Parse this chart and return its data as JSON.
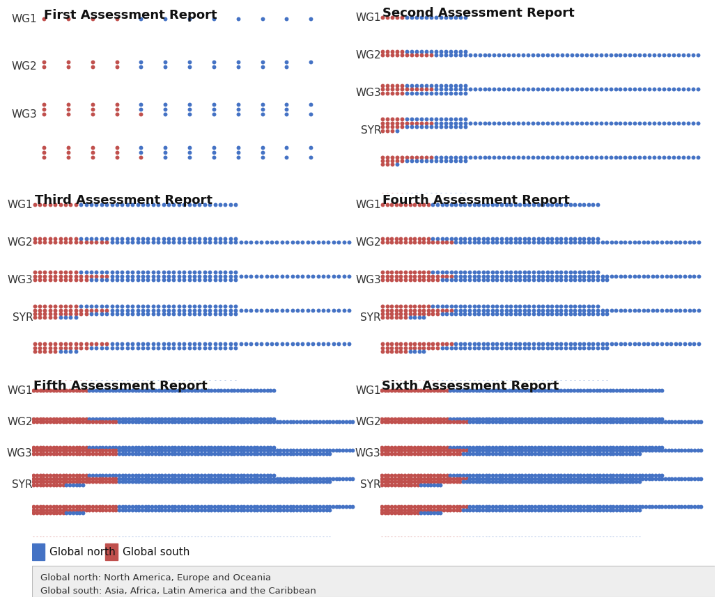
{
  "reports": [
    {
      "title": "First Assessment Report",
      "col": 0,
      "row": 0,
      "groups": [
        "WG1",
        "WG2",
        "WG3"
      ],
      "south": [
        16,
        16,
        18
      ],
      "north": [
        32,
        26,
        28
      ]
    },
    {
      "title": "Second Assessment Report",
      "col": 1,
      "row": 0,
      "groups": [
        "WG1",
        "WG2",
        "WG3",
        "SYR"
      ],
      "south": [
        20,
        44,
        20,
        10
      ],
      "north": [
        52,
        220,
        52,
        4
      ]
    },
    {
      "title": "Third Assessment Report",
      "col": 0,
      "row": 1,
      "groups": [
        "WG1",
        "WG2",
        "WG3",
        "SYR"
      ],
      "south": [
        36,
        60,
        44,
        18
      ],
      "north": [
        124,
        188,
        116,
        16
      ]
    },
    {
      "title": "Fourth Assessment Report",
      "col": 1,
      "row": 1,
      "groups": [
        "WG1",
        "WG2",
        "WG3",
        "SYR"
      ],
      "south": [
        44,
        64,
        52,
        24
      ],
      "north": [
        148,
        216,
        148,
        16
      ]
    },
    {
      "title": "Fifth Assessment Report",
      "col": 0,
      "row": 2,
      "groups": [
        "WG1",
        "WG2",
        "WG3",
        "SYR"
      ],
      "south": [
        68,
        104,
        104,
        40
      ],
      "north": [
        228,
        288,
        260,
        24
      ]
    },
    {
      "title": "Sixth Assessment Report",
      "col": 1,
      "row": 2,
      "groups": [
        "WG1",
        "WG2",
        "WG3",
        "SYR"
      ],
      "south": [
        84,
        108,
        100,
        48
      ],
      "north": [
        264,
        288,
        220,
        28
      ]
    }
  ],
  "north_color": "#4472C4",
  "south_color": "#C0504D",
  "bg_color": "#FFFFFF",
  "rows_per_group": 4,
  "title_fontsize": 13,
  "label_fontsize": 11,
  "legend_fontsize": 11,
  "footer_text": "Global north: North America, Europe and Oceania\nGlobal south: Asia, Africa, Latin America and the Caribbean",
  "footer_bg": "#EEEEEE"
}
